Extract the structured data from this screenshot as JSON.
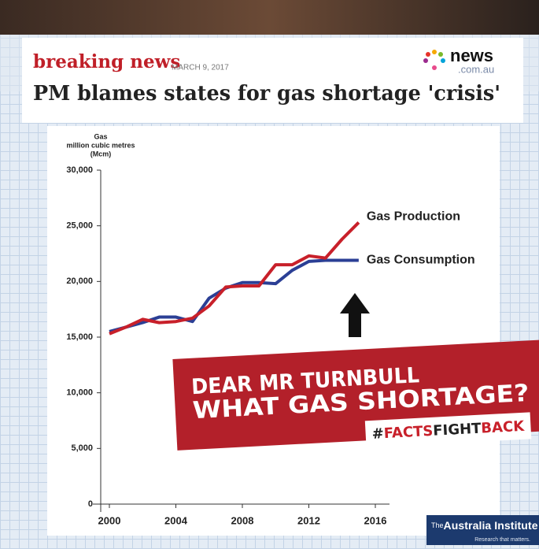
{
  "header": {
    "kicker": "breaking news",
    "date": "MARCH 9, 2017",
    "title": "PM blames states for gas shortage 'crisis'",
    "logo": [
      "news",
      ".com.au"
    ]
  },
  "banner": {
    "lines": [
      "DEAR MR TURNBULL",
      "WHAT GAS SHORTAGE?"
    ],
    "hashtag": [
      "#",
      "FACTS",
      "FIGHT",
      "BACK"
    ]
  },
  "footer_logo": {
    "name": [
      "The",
      "Australia Institute"
    ],
    "tagline": "Research that matters."
  },
  "chart_data": {
    "type": "line",
    "ylabel": [
      "Gas",
      "million cubic metres",
      "(Mcm)"
    ],
    "x": [
      2000,
      2001,
      2002,
      2003,
      2004,
      2005,
      2006,
      2007,
      2008,
      2009,
      2010,
      2011,
      2012,
      2013,
      2014,
      2015
    ],
    "series": [
      {
        "name": "Gas Production",
        "color": "#c8202a",
        "values": [
          15300,
          15900,
          16600,
          16300,
          16400,
          16700,
          17800,
          19500,
          19600,
          19600,
          21500,
          21500,
          22300,
          22100,
          23800,
          25300
        ]
      },
      {
        "name": "Gas Consumption",
        "color": "#2b3f95",
        "values": [
          15500,
          15900,
          16300,
          16800,
          16800,
          16400,
          18500,
          19400,
          19900,
          19900,
          19800,
          21000,
          21800,
          21900,
          21900,
          21900
        ]
      }
    ],
    "xlim": [
      2000,
      2016
    ],
    "xticks": [
      2000,
      2004,
      2008,
      2012,
      2016
    ],
    "ylim": [
      0,
      30000
    ],
    "yticks": [
      0,
      {
        "value": 5000,
        "label": "5,000"
      },
      {
        "value": 10000,
        "label": "10,000"
      },
      {
        "value": 15000,
        "label": "15,000"
      },
      {
        "value": 20000,
        "label": "20,000"
      },
      {
        "value": 25000,
        "label": "25,000"
      },
      {
        "value": 30000,
        "label": "30,000"
      }
    ],
    "grid": false
  }
}
